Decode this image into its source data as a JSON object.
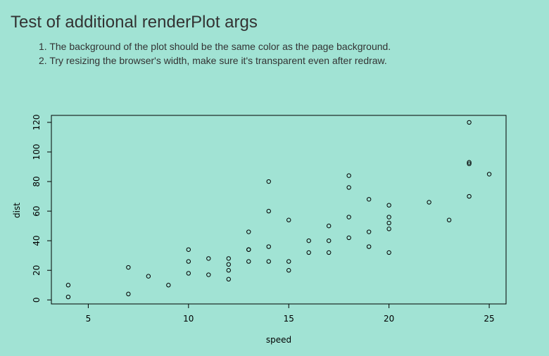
{
  "page": {
    "title": "Test of additional renderPlot args",
    "instructions": [
      "1. The background of the plot should be the same color as the page background.",
      "2. Try resizing the browser's width, make sure it's transparent even after redraw."
    ],
    "background_color": "#a1e3d4"
  },
  "chart_data": {
    "type": "scatter",
    "title": "",
    "xlabel": "speed",
    "ylabel": "dist",
    "xlim": [
      3.16,
      25.84
    ],
    "ylim": [
      -2.72,
      124.72
    ],
    "x_ticks": [
      5,
      10,
      15,
      20,
      25
    ],
    "y_ticks": [
      0,
      20,
      40,
      60,
      80,
      100,
      120
    ],
    "grid": false,
    "legend": "none",
    "point_style": "open-circle",
    "series": [
      {
        "x": [
          4,
          4,
          7,
          7,
          8,
          9,
          10,
          10,
          10,
          11,
          11,
          12,
          12,
          12,
          12,
          13,
          13,
          13,
          13,
          14,
          14,
          14,
          14,
          15,
          15,
          15,
          16,
          16,
          17,
          17,
          17,
          18,
          18,
          18,
          18,
          19,
          19,
          19,
          20,
          20,
          20,
          20,
          20,
          22,
          23,
          24,
          24,
          24,
          24,
          25
        ],
        "y": [
          2,
          10,
          4,
          22,
          16,
          10,
          18,
          26,
          34,
          17,
          28,
          14,
          20,
          24,
          28,
          26,
          34,
          34,
          46,
          26,
          36,
          60,
          80,
          20,
          26,
          54,
          32,
          40,
          32,
          40,
          50,
          42,
          56,
          76,
          84,
          36,
          46,
          68,
          32,
          48,
          52,
          56,
          64,
          66,
          54,
          70,
          92,
          93,
          120,
          85
        ]
      }
    ]
  }
}
